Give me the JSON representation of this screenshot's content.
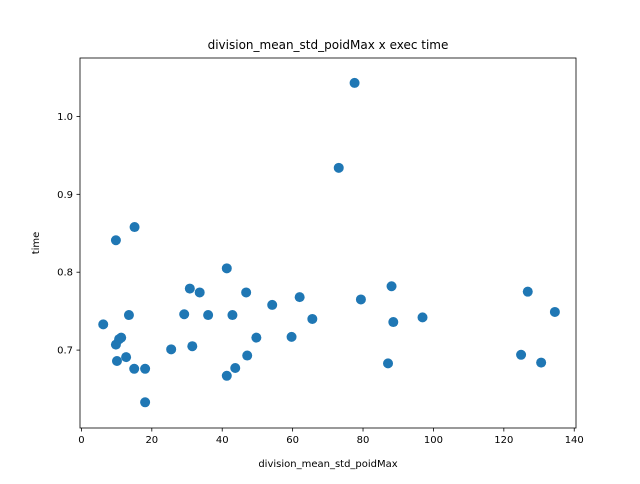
{
  "chart_data": {
    "type": "scatter",
    "title": "division_mean_std_poidMax x exec time",
    "xlabel": "division_mean_std_poidMax",
    "ylabel": "time",
    "xlim": [
      -0.4,
      140.5
    ],
    "ylim": [
      0.6,
      1.075
    ],
    "xticks": [
      0,
      20,
      40,
      60,
      80,
      100,
      120,
      140
    ],
    "yticks": [
      0.7,
      0.8,
      0.9,
      1.0
    ],
    "xtick_labels": [
      "0",
      "20",
      "40",
      "60",
      "80",
      "100",
      "120",
      "140"
    ],
    "ytick_labels": [
      "0.7",
      "0.8",
      "0.9",
      "1.0"
    ],
    "grid": false,
    "marker_color": "#1f77b4",
    "points": [
      {
        "x": 6.2,
        "y": 0.733
      },
      {
        "x": 9.8,
        "y": 0.841
      },
      {
        "x": 9.8,
        "y": 0.707
      },
      {
        "x": 10.1,
        "y": 0.686
      },
      {
        "x": 10.7,
        "y": 0.714
      },
      {
        "x": 11.3,
        "y": 0.716
      },
      {
        "x": 12.7,
        "y": 0.691
      },
      {
        "x": 13.5,
        "y": 0.745
      },
      {
        "x": 15.1,
        "y": 0.858
      },
      {
        "x": 15.0,
        "y": 0.676
      },
      {
        "x": 18.1,
        "y": 0.676
      },
      {
        "x": 18.1,
        "y": 0.633
      },
      {
        "x": 25.5,
        "y": 0.701
      },
      {
        "x": 29.2,
        "y": 0.746
      },
      {
        "x": 30.8,
        "y": 0.779
      },
      {
        "x": 31.5,
        "y": 0.705
      },
      {
        "x": 33.6,
        "y": 0.774
      },
      {
        "x": 36.0,
        "y": 0.745
      },
      {
        "x": 41.3,
        "y": 0.805
      },
      {
        "x": 41.3,
        "y": 0.667
      },
      {
        "x": 42.9,
        "y": 0.745
      },
      {
        "x": 43.7,
        "y": 0.677
      },
      {
        "x": 46.8,
        "y": 0.774
      },
      {
        "x": 47.1,
        "y": 0.693
      },
      {
        "x": 49.7,
        "y": 0.716
      },
      {
        "x": 54.2,
        "y": 0.758
      },
      {
        "x": 59.7,
        "y": 0.717
      },
      {
        "x": 62.0,
        "y": 0.768
      },
      {
        "x": 65.6,
        "y": 0.74
      },
      {
        "x": 73.1,
        "y": 0.934
      },
      {
        "x": 77.6,
        "y": 1.043
      },
      {
        "x": 79.4,
        "y": 0.765
      },
      {
        "x": 87.1,
        "y": 0.683
      },
      {
        "x": 88.1,
        "y": 0.782
      },
      {
        "x": 88.6,
        "y": 0.736
      },
      {
        "x": 96.9,
        "y": 0.742
      },
      {
        "x": 124.9,
        "y": 0.694
      },
      {
        "x": 126.8,
        "y": 0.775
      },
      {
        "x": 130.6,
        "y": 0.684
      },
      {
        "x": 134.5,
        "y": 0.749
      }
    ]
  }
}
